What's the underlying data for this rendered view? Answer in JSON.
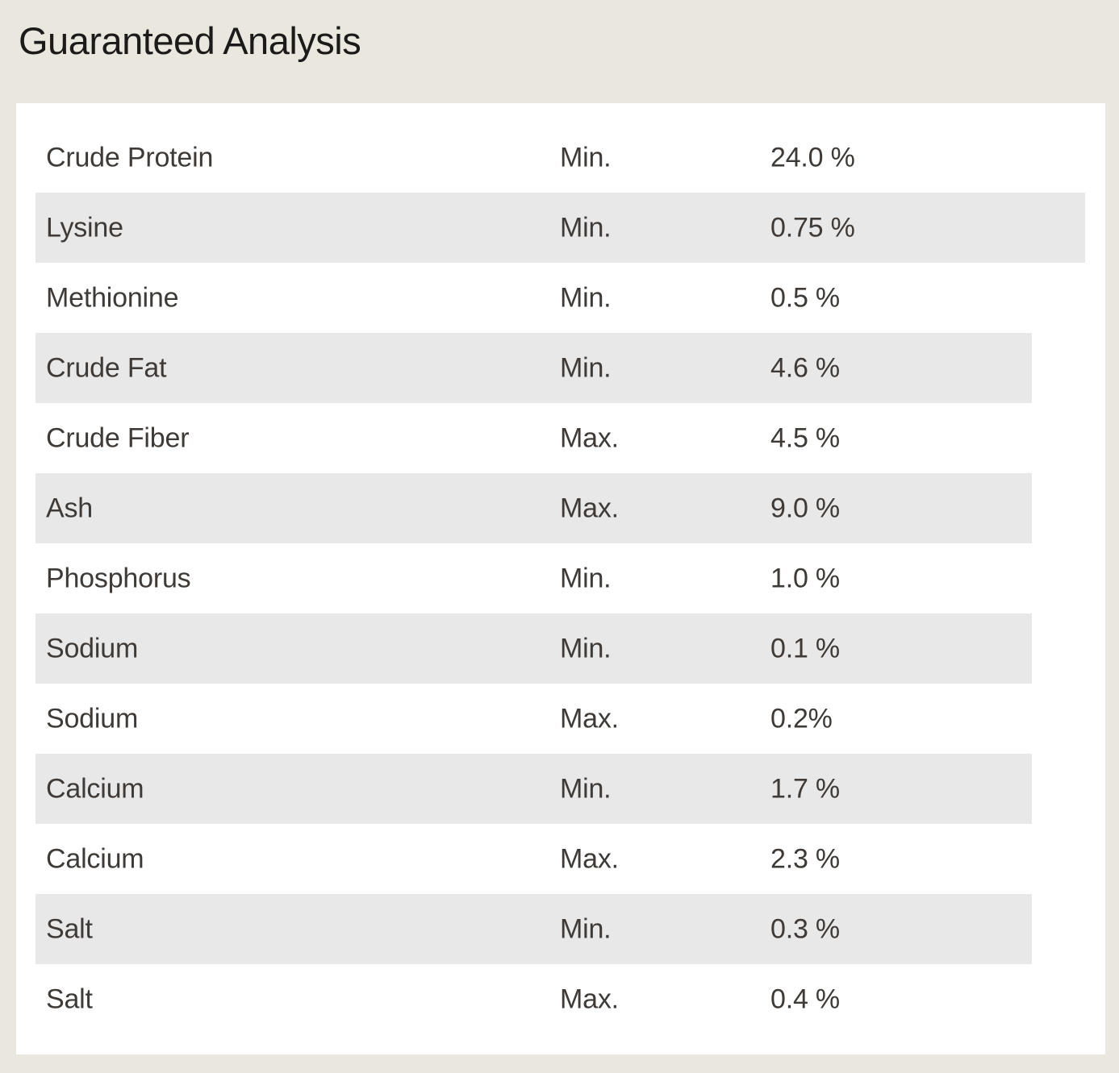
{
  "page": {
    "title": "Guaranteed Analysis",
    "colors": {
      "background": "#e9e7de",
      "card": "#ffffff",
      "stripe": "#e9e8e8",
      "text": "#3e3a37",
      "title": "#1d1b1a"
    }
  },
  "table": {
    "rows": [
      {
        "nutrient": "Crude Protein",
        "limit": "Min.",
        "value": "24.0 %"
      },
      {
        "nutrient": "Lysine",
        "limit": "Min.",
        "value": "0.75 %",
        "wide": true
      },
      {
        "nutrient": "Methionine",
        "limit": "Min.",
        "value": "0.5 %"
      },
      {
        "nutrient": "Crude Fat",
        "limit": "Min.",
        "value": "4.6 %"
      },
      {
        "nutrient": "Crude Fiber",
        "limit": "Max.",
        "value": "4.5 %"
      },
      {
        "nutrient": "Ash",
        "limit": "Max.",
        "value": "9.0 %"
      },
      {
        "nutrient": "Phosphorus",
        "limit": "Min.",
        "value": "1.0 %"
      },
      {
        "nutrient": "Sodium",
        "limit": "Min.",
        "value": "0.1 %"
      },
      {
        "nutrient": "Sodium",
        "limit": "Max.",
        "value": "0.2%"
      },
      {
        "nutrient": "Calcium",
        "limit": "Min.",
        "value": "1.7 %"
      },
      {
        "nutrient": "Calcium",
        "limit": "Max.",
        "value": "2.3 %"
      },
      {
        "nutrient": "Salt",
        "limit": "Min.",
        "value": "0.3 %"
      },
      {
        "nutrient": "Salt",
        "limit": "Max.",
        "value": "0.4 %"
      }
    ]
  }
}
